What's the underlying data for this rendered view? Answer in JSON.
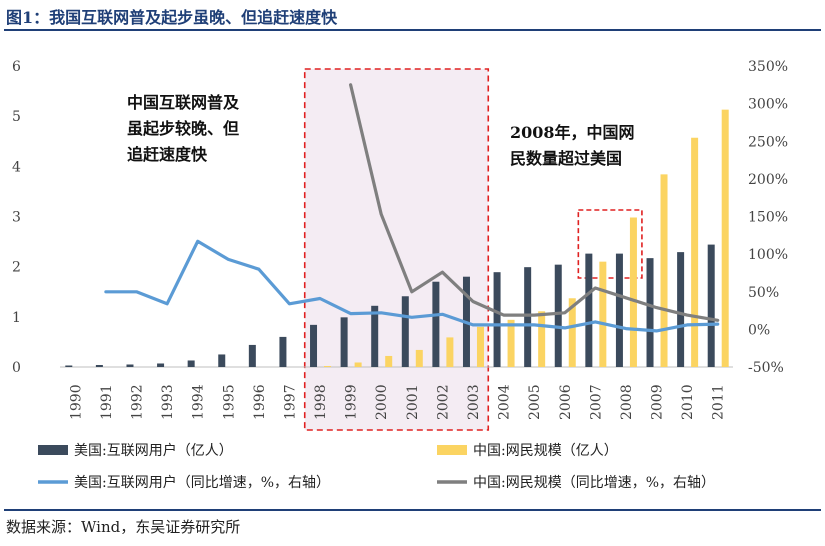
{
  "header": {
    "title": "图1：我国互联网普及起步虽晚、但追赶速度快"
  },
  "footer": {
    "source": "数据来源：Wind，东吴证券研究所"
  },
  "chart_data": {
    "type": "bar",
    "categories": [
      "1990",
      "1991",
      "1992",
      "1993",
      "1994",
      "1995",
      "1996",
      "1997",
      "1998",
      "1999",
      "2000",
      "2001",
      "2002",
      "2003",
      "2004",
      "2005",
      "2006",
      "2007",
      "2008",
      "2009",
      "2010",
      "2011"
    ],
    "series": [
      {
        "name": "美国:互联网用户（亿人）",
        "type": "bar",
        "axis": "left",
        "color": "#3b4a5c",
        "values": [
          0.03,
          0.04,
          0.05,
          0.07,
          0.13,
          0.25,
          0.44,
          0.6,
          0.84,
          0.99,
          1.22,
          1.41,
          1.7,
          1.8,
          1.89,
          1.99,
          2.04,
          2.26,
          2.26,
          2.17,
          2.29,
          2.44
        ]
      },
      {
        "name": "中国:网民规模（亿人）",
        "type": "bar",
        "axis": "left",
        "color": "#fbd462",
        "values": [
          null,
          null,
          null,
          null,
          null,
          null,
          null,
          null,
          0.02,
          0.09,
          0.22,
          0.34,
          0.59,
          0.8,
          0.94,
          1.11,
          1.37,
          2.1,
          2.98,
          3.84,
          4.57,
          5.13
        ]
      },
      {
        "name": "美国:互联网用户（同比增速，%，右轴）",
        "type": "line",
        "axis": "right",
        "color": "#5b9bd5",
        "values": [
          null,
          50,
          50,
          34,
          117,
          93,
          80,
          34,
          41,
          21,
          22,
          16,
          20,
          6,
          6,
          6,
          2,
          10,
          1,
          -2,
          6,
          7
        ]
      },
      {
        "name": "中国:网民规模（同比增速，%，右轴）",
        "type": "line",
        "axis": "right",
        "color": "#7f7f7f",
        "values": [
          null,
          null,
          null,
          null,
          null,
          null,
          null,
          null,
          null,
          325,
          153,
          50,
          76,
          37,
          19,
          19,
          22,
          55,
          42,
          29,
          19,
          12
        ]
      }
    ],
    "y_left": {
      "min": 0,
      "max": 6,
      "ticks": [
        "0",
        "1",
        "2",
        "3",
        "4",
        "5",
        "6"
      ]
    },
    "y_right": {
      "min": -50,
      "max": 350,
      "ticks": [
        "-50%",
        "0%",
        "50%",
        "100%",
        "150%",
        "200%",
        "250%",
        "300%",
        "350%"
      ]
    },
    "annotations": [
      {
        "lines": [
          "中国互联网普及",
          "虽起步较晚、但",
          "追赶速度快"
        ]
      },
      {
        "lines": [
          "2008年，中国网",
          "民数量超过美国"
        ]
      }
    ],
    "highlight_ranges": [
      {
        "from": "1998",
        "to": "2003",
        "style": "shaded-dashed"
      },
      {
        "from": "2007",
        "to": "2008",
        "style": "dashed"
      }
    ],
    "legend": [
      {
        "label": "美国:互联网用户（亿人）",
        "marker": "bar",
        "color": "#3b4a5c"
      },
      {
        "label": "中国:网民规模（亿人）",
        "marker": "bar",
        "color": "#fbd462"
      },
      {
        "label": "美国:互联网用户（同比增速，%，右轴）",
        "marker": "line",
        "color": "#5b9bd5"
      },
      {
        "label": "中国:网民规模（同比增速，%，右轴）",
        "marker": "line",
        "color": "#7f7f7f"
      }
    ]
  }
}
